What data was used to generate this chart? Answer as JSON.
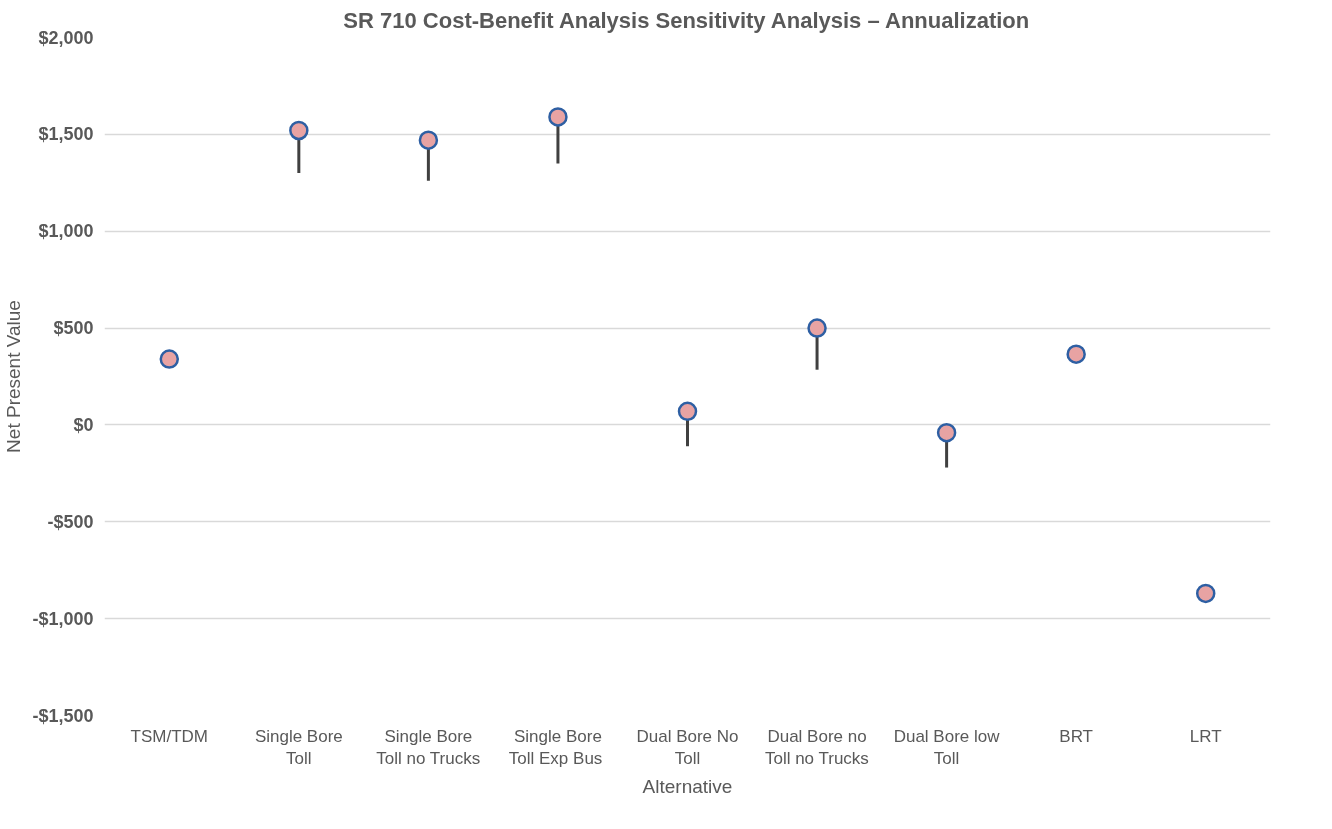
{
  "chart_data": {
    "type": "scatter",
    "title": "SR 710 Cost-Benefit Analysis Sensitivity Analysis – Annualization",
    "xlabel": "Alternative",
    "ylabel": "Net Present Value",
    "categories": [
      "TSM/TDM",
      "Single Bore\nToll",
      "Single Bore\nToll no Trucks",
      "Single Bore\nToll  Exp Bus",
      "Dual Bore No\nToll",
      "Dual Bore no\nToll no Trucks",
      "Dual Bore low\nToll",
      "BRT",
      "LRT"
    ],
    "series": [
      {
        "color": "#e8a3a3",
        "values": [
          340,
          1520,
          1470,
          1590,
          70,
          500,
          -40,
          365,
          -870
        ],
        "errors": [
          null,
          [
            1300,
            1520
          ],
          [
            1260,
            1470
          ],
          [
            1350,
            1590
          ],
          [
            -110,
            70
          ],
          [
            285,
            500
          ],
          [
            -220,
            -40
          ],
          null,
          null
        ]
      }
    ],
    "ylim": [
      -1500,
      2000
    ],
    "yticks": [
      {
        "value": -1500,
        "label": "-$1,500"
      },
      {
        "value": -1000,
        "label": "-$1,000"
      },
      {
        "value": -500,
        "label": "-$500"
      },
      {
        "value": 0,
        "label": "$0"
      },
      {
        "value": 500,
        "label": "$500"
      },
      {
        "value": 1000,
        "label": "$1,000"
      },
      {
        "value": 1500,
        "label": "$1,500"
      },
      {
        "value": 2000,
        "label": "$2,000"
      }
    ],
    "grid": "y",
    "marker": "circle"
  }
}
